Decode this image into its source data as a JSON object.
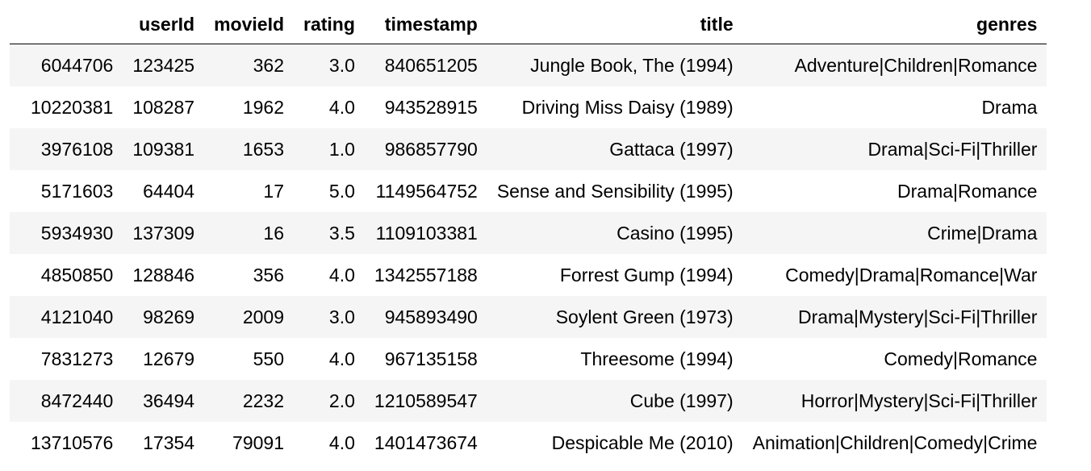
{
  "table": {
    "columns": [
      "",
      "userId",
      "movieId",
      "rating",
      "timestamp",
      "title",
      "genres"
    ],
    "rows": [
      [
        "6044706",
        "123425",
        "362",
        "3.0",
        "840651205",
        "Jungle Book, The (1994)",
        "Adventure|Children|Romance"
      ],
      [
        "10220381",
        "108287",
        "1962",
        "4.0",
        "943528915",
        "Driving Miss Daisy (1989)",
        "Drama"
      ],
      [
        "3976108",
        "109381",
        "1653",
        "1.0",
        "986857790",
        "Gattaca (1997)",
        "Drama|Sci-Fi|Thriller"
      ],
      [
        "5171603",
        "64404",
        "17",
        "5.0",
        "1149564752",
        "Sense and Sensibility (1995)",
        "Drama|Romance"
      ],
      [
        "5934930",
        "137309",
        "16",
        "3.5",
        "1109103381",
        "Casino (1995)",
        "Crime|Drama"
      ],
      [
        "4850850",
        "128846",
        "356",
        "4.0",
        "1342557188",
        "Forrest Gump (1994)",
        "Comedy|Drama|Romance|War"
      ],
      [
        "4121040",
        "98269",
        "2009",
        "3.0",
        "945893490",
        "Soylent Green (1973)",
        "Drama|Mystery|Sci-Fi|Thriller"
      ],
      [
        "7831273",
        "12679",
        "550",
        "4.0",
        "967135158",
        "Threesome (1994)",
        "Comedy|Romance"
      ],
      [
        "8472440",
        "36494",
        "2232",
        "2.0",
        "1210589547",
        "Cube (1997)",
        "Horror|Mystery|Sci-Fi|Thriller"
      ],
      [
        "13710576",
        "17354",
        "79091",
        "4.0",
        "1401473674",
        "Despicable Me (2010)",
        "Animation|Children|Comedy|Crime"
      ]
    ]
  },
  "colors": {
    "stripe": "#f5f5f5",
    "text": "#000000",
    "header_rule": "#000000"
  }
}
